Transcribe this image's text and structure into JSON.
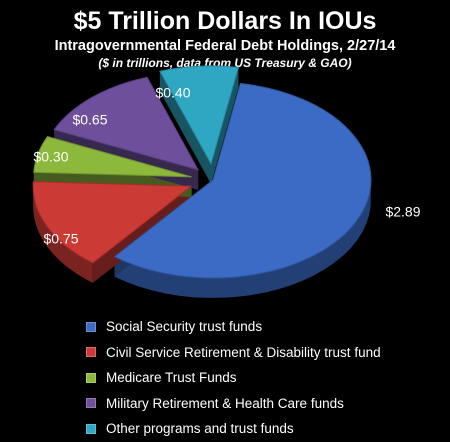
{
  "chart_data": {
    "type": "pie",
    "title": "$5 Trillion Dollars In IOUs",
    "subtitle": "Intragovernmental Federal Debt Holdings, 2/27/14",
    "note": "($ in trillions, data from US Treasury & GAO)",
    "legend_position": "bottom",
    "exploded": true,
    "style": "3d",
    "slices": [
      {
        "name": "Social Security trust funds",
        "value": 2.89,
        "label": "$2.89",
        "color": "#3b6bc4"
      },
      {
        "name": "Civil Service Retirement & Disability trust fund",
        "value": 0.75,
        "label": "$0.75",
        "color": "#cc3a36"
      },
      {
        "name": "Medicare Trust Funds",
        "value": 0.3,
        "label": "$0.30",
        "color": "#8cb83c"
      },
      {
        "name": "Military Retirement & Health Care funds",
        "value": 0.65,
        "label": "$0.65",
        "color": "#6e4f9c"
      },
      {
        "name": "Other programs and trust funds",
        "value": 0.4,
        "label": "$0.40",
        "color": "#2fa7c3"
      }
    ]
  }
}
